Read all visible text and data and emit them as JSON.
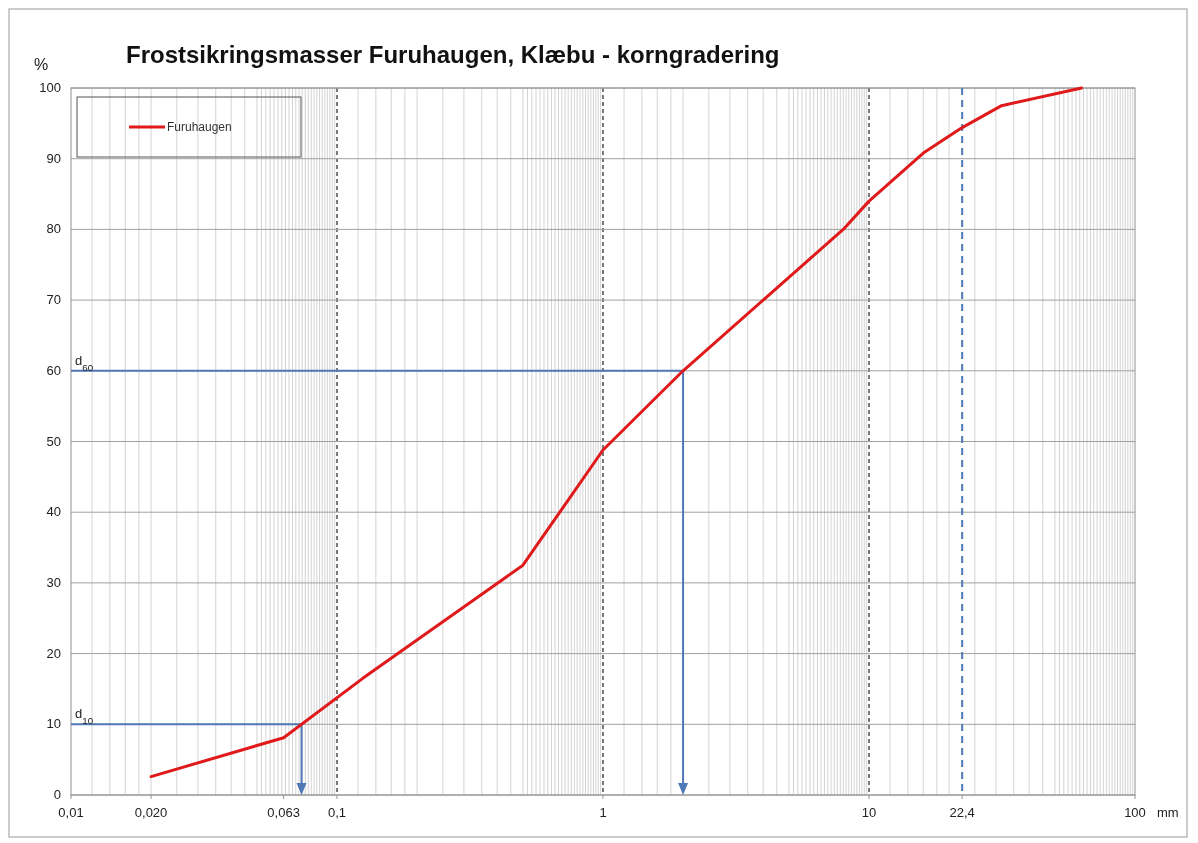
{
  "chart_data": {
    "type": "line",
    "title": "Frostsikringsmasser Furuhaugen, Klæbu - korngradering",
    "xlabel": "mm",
    "ylabel": "%",
    "log": "x",
    "grid": true,
    "legend": "top left",
    "line_style": "solid",
    "marker": "none",
    "series": [
      {
        "name": "Furuhaugen",
        "color": "#e0191b",
        "x": [
          0.02,
          0.063,
          0.125,
          0.25,
          0.5,
          1,
          2,
          4,
          8,
          10,
          16,
          22.4,
          31.5,
          63
        ],
        "values": [
          2.6,
          8.1,
          16.5,
          24.5,
          32.5,
          48.8,
          60,
          70,
          80,
          84,
          90.8,
          94.4,
          97.5,
          100
        ]
      }
    ],
    "xlim": [
      0.01,
      100
    ],
    "xticks": [
      {
        "value": 0.01,
        "label": "0,01"
      },
      {
        "value": 0.02,
        "label": "0,020"
      },
      {
        "value": 0.063,
        "label": "0,063"
      },
      {
        "value": 0.1,
        "label": "0,1"
      },
      1,
      10,
      {
        "value": 22.4,
        "label": "22,4"
      },
      100
    ],
    "ylim": [
      0,
      100
    ],
    "yticks": [
      0,
      10,
      20,
      30,
      40,
      50,
      60,
      70,
      80,
      90,
      100
    ],
    "ref_lines": [
      {
        "axis": "x",
        "value": 22.4,
        "color": "#4f79b4",
        "line_style": "dashed"
      },
      {
        "axis": "y",
        "value": 10,
        "label": "d$_{10}$",
        "color": "#4f79b4",
        "line_style": "solid"
      },
      {
        "axis": "y",
        "value": 60,
        "label": "d$_{60}$",
        "color": "#4f79b4",
        "line_style": "solid"
      }
    ]
  }
}
